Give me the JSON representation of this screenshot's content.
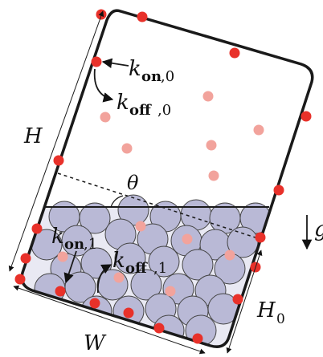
{
  "labels": {
    "H": "H",
    "W": "W",
    "H0_main": "H",
    "H0_sub": "0",
    "theta": "θ",
    "g": "g",
    "kon0_main": "k",
    "kon0_sub": "on",
    "kon0_idx": ",0",
    "koff0_main": "k",
    "koff0_sub": "off",
    "koff0_idx": ",0",
    "kon1_main": "k",
    "kon1_sub": "on",
    "kon1_idx": ",1",
    "koff1_main": "k",
    "koff1_sub": "off",
    "koff1_idx": ",1"
  },
  "colors": {
    "container_stroke": "#1a1a1a",
    "bound_particle": "#e8312a",
    "free_particle": "#f2a39c",
    "granular_fill": "#b9b9d6",
    "granular_stroke": "#444444",
    "bed_fill": "#e9e9f3"
  }
}
